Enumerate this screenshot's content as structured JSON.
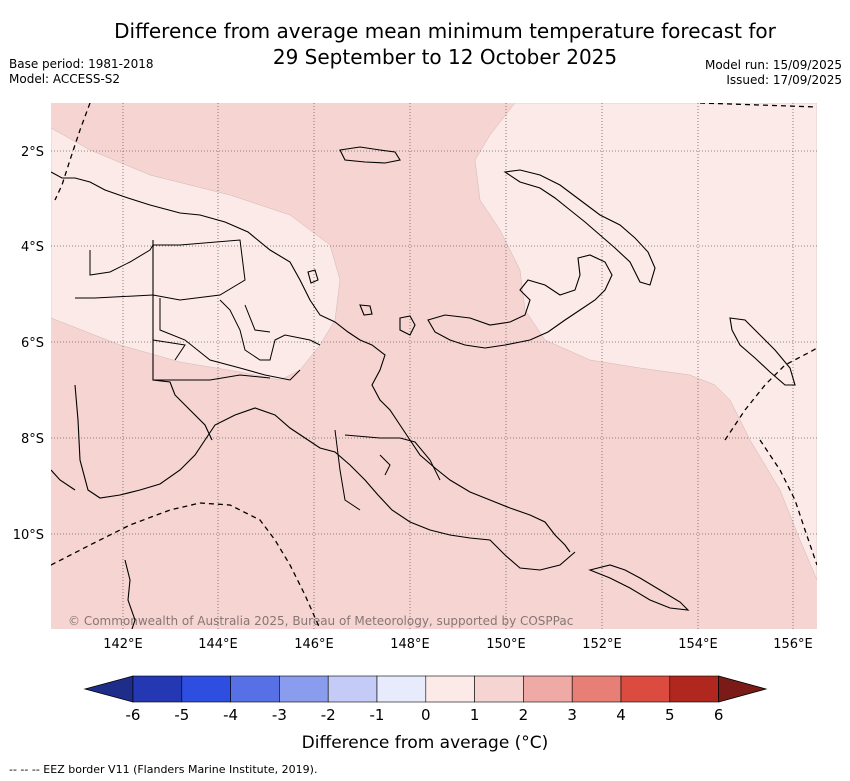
{
  "header": {
    "title_line1": "Difference from average mean minimum temperature forecast for",
    "title_line2": "29 September to 12 October 2025",
    "base_period": "Base period: 1981-2018",
    "model": "Model: ACCESS-S2",
    "model_run": "Model run: 15/09/2025",
    "issued": "Issued: 17/09/2025"
  },
  "map": {
    "copyright": "© Commonwealth of Australia 2025, Bureau of Meteorology, supported by COSPPac",
    "lat_labels": [
      "2°S",
      "4°S",
      "6°S",
      "8°S",
      "10°S"
    ],
    "lon_labels": [
      "142°E",
      "144°E",
      "146°E",
      "148°E",
      "150°E",
      "152°E",
      "154°E",
      "156°E"
    ],
    "region_colors": {
      "anomaly_0_to_1": "#fceae8",
      "anomaly_1_to_2": "#f5d4d1"
    }
  },
  "colorbar": {
    "ticks": [
      "-6",
      "-5",
      "-4",
      "-3",
      "-2",
      "-1",
      "0",
      "1",
      "2",
      "3",
      "4",
      "5",
      "6"
    ],
    "colors": [
      "#1f2d8a",
      "#2438b4",
      "#2d4ee0",
      "#5870e6",
      "#8a9cee",
      "#c3cbf6",
      "#e8ebfb",
      "#fceae8",
      "#f5d4d1",
      "#efaaa5",
      "#e77f77",
      "#dc4b3f",
      "#b02720",
      "#7a1b18"
    ],
    "label": "Difference from average (°C)"
  },
  "footnote": "-- -- -- EEZ border V11 (Flanders Marine Institute, 2019)."
}
